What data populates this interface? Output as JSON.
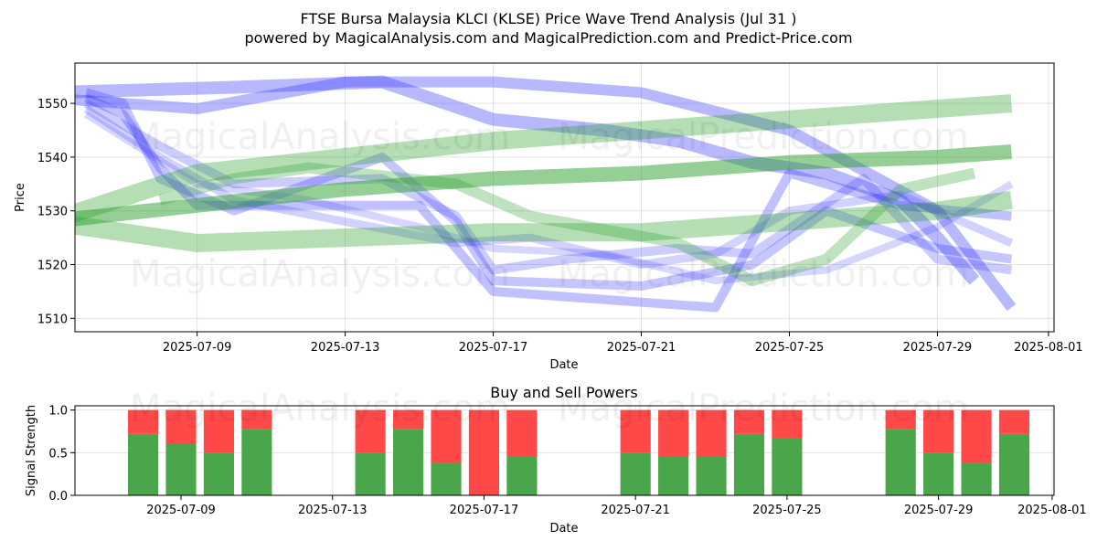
{
  "figure": {
    "title_line1": "FTSE Bursa Malaysia KLCI (KLSE) Price Wave Trend Analysis (Jul 31 )",
    "title_line2": "powered by MagicalAnalysis.com and MagicalPrediction.com and Predict-Price.com",
    "watermark_1": "MagicalAnalysis.com",
    "watermark_2": "MagicalPrediction.com"
  },
  "chart_data": [
    {
      "type": "line",
      "title": "",
      "xlabel": "Date",
      "ylabel": "Price",
      "x_ticks": [
        "2025-07-09",
        "2025-07-13",
        "2025-07-17",
        "2025-07-21",
        "2025-07-25",
        "2025-07-29",
        "2025-08-01"
      ],
      "y_ticks": [
        1510,
        1520,
        1530,
        1540,
        1550
      ],
      "xlim": [
        "2025-07-05",
        "2025-08-01"
      ],
      "ylim": [
        1507.5,
        1557.5
      ],
      "grid": true,
      "colors": {
        "wave": "#3333ff",
        "trend": "#2ca02c"
      },
      "series": [
        {
          "color": "wave",
          "width": 12,
          "opacity": 0.35,
          "points": [
            [
              "2025-07-05",
              1551
            ],
            [
              "2025-07-09",
              1549
            ],
            [
              "2025-07-13",
              1554
            ],
            [
              "2025-07-17",
              1554
            ],
            [
              "2025-07-21",
              1552
            ],
            [
              "2025-07-25",
              1545
            ],
            [
              "2025-07-29",
              1530
            ],
            [
              "2025-07-31",
              1512
            ]
          ]
        },
        {
          "color": "wave",
          "width": 14,
          "opacity": 0.35,
          "points": [
            [
              "2025-07-05",
              1552
            ],
            [
              "2025-07-10",
              1553
            ],
            [
              "2025-07-14",
              1554
            ],
            [
              "2025-07-17",
              1547
            ],
            [
              "2025-07-20",
              1545
            ],
            [
              "2025-07-22",
              1543
            ],
            [
              "2025-07-24",
              1539
            ],
            [
              "2025-07-26",
              1537
            ],
            [
              "2025-07-28",
              1532
            ],
            [
              "2025-07-29",
              1525
            ],
            [
              "2025-07-30",
              1517
            ]
          ]
        },
        {
          "color": "wave",
          "width": 10,
          "opacity": 0.3,
          "points": [
            [
              "2025-07-06",
              1551
            ],
            [
              "2025-07-07",
              1548
            ],
            [
              "2025-07-08",
              1538
            ],
            [
              "2025-07-09",
              1531
            ],
            [
              "2025-07-12",
              1531
            ],
            [
              "2025-07-15",
              1531
            ],
            [
              "2025-07-17",
              1515
            ],
            [
              "2025-07-21",
              1513
            ],
            [
              "2025-07-23",
              1512
            ],
            [
              "2025-07-25",
              1537
            ],
            [
              "2025-07-28",
              1531
            ],
            [
              "2025-07-31",
              1529
            ]
          ]
        },
        {
          "color": "wave",
          "width": 10,
          "opacity": 0.28,
          "points": [
            [
              "2025-07-06",
              1552
            ],
            [
              "2025-07-07",
              1550
            ],
            [
              "2025-07-08",
              1536
            ],
            [
              "2025-07-10",
              1530
            ],
            [
              "2025-07-14",
              1540
            ],
            [
              "2025-07-16",
              1528
            ],
            [
              "2025-07-17",
              1517
            ],
            [
              "2025-07-21",
              1516
            ],
            [
              "2025-07-24",
              1520
            ],
            [
              "2025-07-26",
              1530
            ],
            [
              "2025-07-29",
              1523
            ],
            [
              "2025-07-31",
              1521
            ]
          ]
        },
        {
          "color": "wave",
          "width": 10,
          "opacity": 0.25,
          "points": [
            [
              "2025-07-06",
              1550
            ],
            [
              "2025-07-08",
              1542
            ],
            [
              "2025-07-10",
              1535
            ],
            [
              "2025-07-14",
              1536
            ],
            [
              "2025-07-16",
              1529
            ],
            [
              "2025-07-17",
              1519
            ],
            [
              "2025-07-19",
              1521
            ],
            [
              "2025-07-22",
              1523
            ],
            [
              "2025-07-24",
              1522
            ],
            [
              "2025-07-27",
              1536
            ],
            [
              "2025-07-29",
              1521
            ],
            [
              "2025-07-31",
              1519
            ]
          ]
        },
        {
          "color": "wave",
          "width": 9,
          "opacity": 0.22,
          "points": [
            [
              "2025-07-06",
              1549
            ],
            [
              "2025-07-08",
              1540
            ],
            [
              "2025-07-10",
              1532
            ],
            [
              "2025-07-13",
              1528
            ],
            [
              "2025-07-16",
              1524
            ],
            [
              "2025-07-18",
              1525
            ],
            [
              "2025-07-21",
              1520
            ],
            [
              "2025-07-23",
              1522
            ],
            [
              "2025-07-25",
              1530
            ],
            [
              "2025-07-28",
              1533
            ],
            [
              "2025-07-31",
              1524
            ]
          ]
        },
        {
          "color": "wave",
          "width": 8,
          "opacity": 0.2,
          "points": [
            [
              "2025-07-06",
              1548
            ],
            [
              "2025-07-09",
              1535
            ],
            [
              "2025-07-12",
              1532
            ],
            [
              "2025-07-15",
              1527
            ],
            [
              "2025-07-17",
              1523
            ],
            [
              "2025-07-20",
              1522
            ],
            [
              "2025-07-23",
              1517
            ],
            [
              "2025-07-26",
              1519
            ],
            [
              "2025-07-29",
              1527
            ],
            [
              "2025-07-31",
              1535
            ]
          ]
        },
        {
          "color": "trend",
          "width": 20,
          "opacity": 0.35,
          "points": [
            [
              "2025-07-05",
              1528
            ],
            [
              "2025-07-09",
              1537
            ],
            [
              "2025-07-13",
              1540
            ],
            [
              "2025-07-17",
              1543
            ],
            [
              "2025-07-21",
              1545
            ],
            [
              "2025-07-25",
              1547
            ],
            [
              "2025-07-29",
              1549
            ],
            [
              "2025-07-31",
              1550
            ]
          ]
        },
        {
          "color": "trend",
          "width": 20,
          "opacity": 0.35,
          "points": [
            [
              "2025-07-05",
              1528
            ],
            [
              "2025-07-09",
              1524
            ],
            [
              "2025-07-13",
              1525
            ],
            [
              "2025-07-17",
              1526
            ],
            [
              "2025-07-21",
              1526
            ],
            [
              "2025-07-25",
              1528
            ],
            [
              "2025-07-29",
              1530
            ],
            [
              "2025-07-31",
              1532
            ]
          ]
        },
        {
          "color": "trend",
          "width": 16,
          "opacity": 0.5,
          "points": [
            [
              "2025-07-05",
              1528
            ],
            [
              "2025-07-09",
              1531
            ],
            [
              "2025-07-13",
              1534
            ],
            [
              "2025-07-17",
              1536
            ],
            [
              "2025-07-21",
              1537
            ],
            [
              "2025-07-25",
              1539
            ],
            [
              "2025-07-29",
              1540
            ],
            [
              "2025-07-31",
              1541
            ]
          ]
        },
        {
          "color": "trend",
          "width": 12,
          "opacity": 0.3,
          "points": [
            [
              "2025-07-08",
              1532
            ],
            [
              "2025-07-10",
              1536
            ],
            [
              "2025-07-12",
              1538
            ],
            [
              "2025-07-16",
              1535
            ],
            [
              "2025-07-18",
              1529
            ],
            [
              "2025-07-22",
              1524
            ],
            [
              "2025-07-24",
              1517
            ],
            [
              "2025-07-26",
              1521
            ],
            [
              "2025-07-28",
              1534
            ],
            [
              "2025-07-30",
              1537
            ]
          ]
        }
      ]
    },
    {
      "type": "bar",
      "stacked": true,
      "title": "Buy and Sell Powers",
      "xlabel": "Date",
      "ylabel": "Signal Strength",
      "x_ticks": [
        "2025-07-09",
        "2025-07-13",
        "2025-07-17",
        "2025-07-21",
        "2025-07-25",
        "2025-07-29",
        "2025-08-01"
      ],
      "y_ticks": [
        "0.0",
        "0.5",
        "1.0"
      ],
      "xlim": [
        "2025-07-05",
        "2025-08-01"
      ],
      "ylim": [
        0,
        1.05
      ],
      "grid": true,
      "colors": {
        "buy": "#4aa64a",
        "sell": "#ff4848"
      },
      "dates": [
        "2025-07-08",
        "2025-07-09",
        "2025-07-10",
        "2025-07-11",
        "2025-07-14",
        "2025-07-15",
        "2025-07-16",
        "2025-07-17",
        "2025-07-18",
        "2025-07-21",
        "2025-07-22",
        "2025-07-23",
        "2025-07-24",
        "2025-07-25",
        "2025-07-28",
        "2025-07-29",
        "2025-07-30",
        "2025-07-31"
      ],
      "buy": [
        0.72,
        0.6,
        0.5,
        0.78,
        0.5,
        0.78,
        0.38,
        0.0,
        0.45,
        0.5,
        0.45,
        0.45,
        0.72,
        0.67,
        0.78,
        0.5,
        0.38,
        0.72
      ],
      "sell": [
        0.28,
        0.4,
        0.5,
        0.22,
        0.5,
        0.22,
        0.62,
        1.0,
        0.55,
        0.5,
        0.55,
        0.55,
        0.28,
        0.33,
        0.22,
        0.5,
        0.62,
        0.28
      ]
    }
  ]
}
